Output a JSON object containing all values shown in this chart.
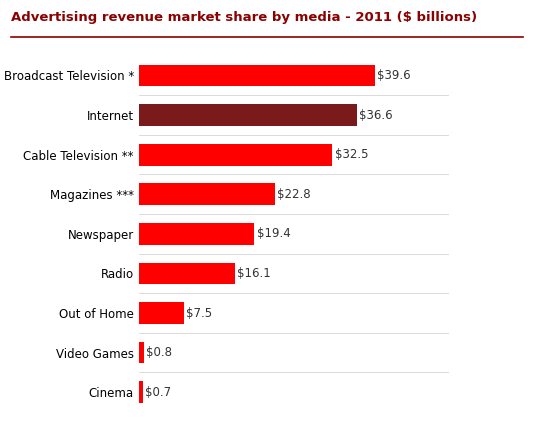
{
  "title": "Advertising revenue market share by media - 2011 ($ billions)",
  "title_color": "#8B0000",
  "title_fontsize": 9.5,
  "categories": [
    "Cinema",
    "Video Games",
    "Out of Home",
    "Radio",
    "Newspaper",
    "Magazines ***",
    "Cable Television **",
    "Internet",
    "Broadcast Television *"
  ],
  "values": [
    0.7,
    0.8,
    7.5,
    16.1,
    19.4,
    22.8,
    32.5,
    36.6,
    39.6
  ],
  "labels": [
    "$0.7",
    "$0.8",
    "$7.5",
    "$16.1",
    "$19.4",
    "$22.8",
    "$32.5",
    "$36.6",
    "$39.6"
  ],
  "bar_colors": [
    "#FF0000",
    "#FF0000",
    "#FF0000",
    "#FF0000",
    "#FF0000",
    "#FF0000",
    "#FF0000",
    "#7B1A1A",
    "#FF0000"
  ],
  "background_color": "#FFFFFF",
  "label_color": "#333333",
  "label_fontsize": 8.5,
  "tick_fontsize": 8.5,
  "divider_color": "#8B0000",
  "xlim": [
    0,
    52
  ]
}
